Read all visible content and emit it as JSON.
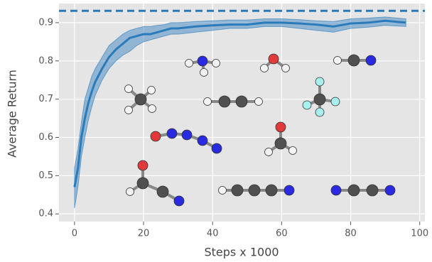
{
  "chart_data": {
    "type": "line",
    "xlabel": "Steps x 1000",
    "ylabel": "Average Return",
    "x": [
      0,
      1,
      2,
      3,
      4,
      5,
      6,
      8,
      10,
      12,
      14,
      16,
      18,
      20,
      22,
      24,
      26,
      28,
      30,
      35,
      40,
      45,
      50,
      55,
      60,
      65,
      70,
      75,
      80,
      85,
      90,
      96
    ],
    "series": [
      {
        "color": "#2b7bba",
        "values": [
          0.47,
          0.52,
          0.6,
          0.65,
          0.69,
          0.72,
          0.745,
          0.78,
          0.81,
          0.83,
          0.845,
          0.86,
          0.865,
          0.87,
          0.87,
          0.875,
          0.88,
          0.885,
          0.885,
          0.89,
          0.893,
          0.895,
          0.895,
          0.9,
          0.9,
          0.898,
          0.895,
          0.89,
          0.898,
          0.9,
          0.905,
          0.9
        ],
        "lower": [
          0.415,
          0.47,
          0.55,
          0.6,
          0.645,
          0.68,
          0.71,
          0.75,
          0.78,
          0.8,
          0.815,
          0.825,
          0.84,
          0.85,
          0.855,
          0.86,
          0.865,
          0.87,
          0.87,
          0.875,
          0.88,
          0.885,
          0.885,
          0.89,
          0.89,
          0.885,
          0.88,
          0.875,
          0.885,
          0.888,
          0.893,
          0.89
        ],
        "upper": [
          0.52,
          0.57,
          0.64,
          0.7,
          0.73,
          0.76,
          0.78,
          0.81,
          0.84,
          0.855,
          0.87,
          0.88,
          0.885,
          0.89,
          0.89,
          0.893,
          0.895,
          0.9,
          0.9,
          0.903,
          0.905,
          0.907,
          0.907,
          0.91,
          0.91,
          0.908,
          0.905,
          0.903,
          0.91,
          0.912,
          0.915,
          0.91
        ]
      }
    ],
    "hline": {
      "value": 0.931,
      "color": "#2b7bba"
    },
    "xlim": [
      -4.5,
      101.5
    ],
    "ylim": [
      0.38,
      0.95
    ],
    "xticks": [
      0,
      20,
      40,
      60,
      80,
      100
    ],
    "yticks": [
      0.4,
      0.5,
      0.6,
      0.7,
      0.8,
      0.9
    ],
    "grid": true
  }
}
